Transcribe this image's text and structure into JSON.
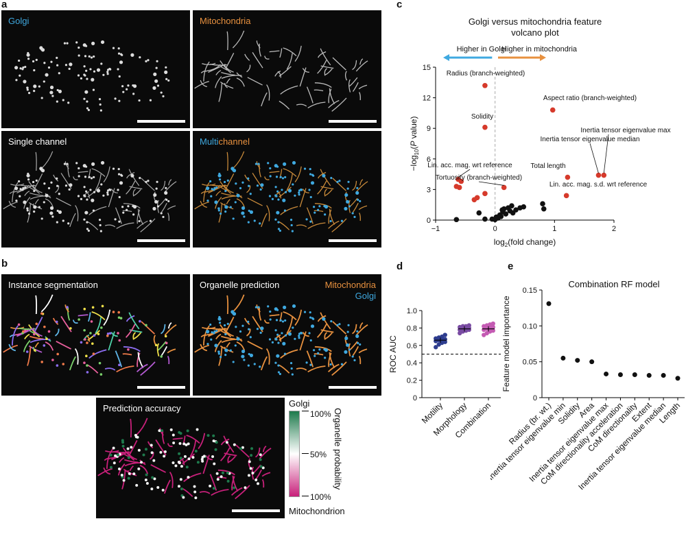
{
  "panels": {
    "a": {
      "label": "a",
      "tiles": [
        {
          "label": "Golgi",
          "color": "#3fa9e0"
        },
        {
          "label": "Mitochondria",
          "color": "#e8913f"
        },
        {
          "label": "Single channel",
          "color": "#ffffff"
        },
        {
          "label_part1": "Multi",
          "label_part2": "channel",
          "color1": "#3fa9e0",
          "color2": "#e8913f"
        }
      ]
    },
    "b": {
      "label": "b",
      "seg_label": "Instance segmentation",
      "pred_label": "Organelle prediction",
      "pred_legend_mito": "Mitochondria",
      "pred_legend_golgi": "Golgi",
      "acc_label": "Prediction accuracy",
      "colorbar": {
        "top": "Golgi",
        "bottom": "Mitochondrion",
        "ticks": [
          "100%",
          "50%",
          "100%"
        ],
        "title": "Organelle probability"
      }
    },
    "c": {
      "label": "c"
    },
    "d": {
      "label": "d"
    },
    "e": {
      "label": "e"
    }
  },
  "colors": {
    "golgi": "#3fa9e0",
    "mito": "#e8913f",
    "red": "#d63a2b",
    "green": "#1e7a4c",
    "pink": "#c8207a"
  },
  "chart_data": [
    {
      "id": "volcano",
      "type": "scatter",
      "title": "Golgi versus mitochondria feature volcano plot",
      "xlabel": "log2(fold change)",
      "ylabel": "−log10(P value)",
      "xlim": [
        -1,
        2
      ],
      "ylim": [
        0,
        15
      ],
      "xticks": [
        -1,
        0,
        1,
        2
      ],
      "yticks": [
        0,
        3,
        6,
        9,
        12,
        15
      ],
      "arrow_left": "Higher in Golgi",
      "arrow_right": "Higher in mitochondria",
      "significant": [
        {
          "x": -0.17,
          "y": 13.2,
          "label": "Radius (branch-weighted)"
        },
        {
          "x": 0.97,
          "y": 10.8,
          "label": "Aspect ratio (branch-weighted)"
        },
        {
          "x": -0.17,
          "y": 9.1,
          "label": "Solidity"
        },
        {
          "x": 1.74,
          "y": 4.4,
          "label": "Inertia tensor eigenvalue median"
        },
        {
          "x": 1.83,
          "y": 4.4,
          "label": "Inertia tensor eigenvalue max"
        },
        {
          "x": 1.22,
          "y": 4.2,
          "label": "Total length"
        },
        {
          "x": -0.62,
          "y": 4.0,
          "label": "Lin. acc. mag. wrt reference"
        },
        {
          "x": -0.57,
          "y": 3.8,
          "label": ""
        },
        {
          "x": -0.65,
          "y": 3.3,
          "label": ""
        },
        {
          "x": -0.6,
          "y": 3.2,
          "label": ""
        },
        {
          "x": 0.15,
          "y": 3.2,
          "label": "Tortuosity (branch-weighted)"
        },
        {
          "x": -0.17,
          "y": 2.6,
          "label": ""
        },
        {
          "x": -0.3,
          "y": 2.2,
          "label": ""
        },
        {
          "x": -0.35,
          "y": 2.0,
          "label": ""
        },
        {
          "x": 1.2,
          "y": 2.4,
          "label": "Lin. acc. mag. s.d. wrt reference"
        }
      ],
      "nonsignificant": [
        {
          "x": -0.65,
          "y": 0.05
        },
        {
          "x": -0.27,
          "y": 0.7
        },
        {
          "x": -0.17,
          "y": 0.1
        },
        {
          "x": -0.05,
          "y": 0.1
        },
        {
          "x": 0.0,
          "y": 0.05
        },
        {
          "x": 0.02,
          "y": 0.3
        },
        {
          "x": 0.05,
          "y": 0.2
        },
        {
          "x": 0.08,
          "y": 0.5
        },
        {
          "x": 0.1,
          "y": 0.35
        },
        {
          "x": 0.13,
          "y": 0.8
        },
        {
          "x": 0.15,
          "y": 1.1
        },
        {
          "x": 0.18,
          "y": 0.6
        },
        {
          "x": 0.22,
          "y": 1.2
        },
        {
          "x": 0.25,
          "y": 0.9
        },
        {
          "x": 0.28,
          "y": 1.4
        },
        {
          "x": 0.35,
          "y": 1.0
        },
        {
          "x": 0.42,
          "y": 1.2
        },
        {
          "x": 0.48,
          "y": 1.3
        },
        {
          "x": 0.8,
          "y": 1.6
        },
        {
          "x": 0.82,
          "y": 1.1
        },
        {
          "x": 0.12,
          "y": 1.0
        },
        {
          "x": 0.3,
          "y": 0.7
        }
      ]
    },
    {
      "id": "roc",
      "type": "scatter",
      "ylabel": "ROC AUC",
      "ylim": [
        0,
        1.0
      ],
      "yticks": [
        "0",
        "0.2",
        "0.4",
        "0.6",
        "0.8",
        "1.0"
      ],
      "chance": 0.5,
      "categories": [
        "Motility",
        "Morphology",
        "Combination"
      ],
      "colors": [
        "#2e3d8f",
        "#7a4ca3",
        "#c45bb3"
      ],
      "means": [
        0.66,
        0.79,
        0.79
      ],
      "points": [
        [
          0.58,
          0.61,
          0.63,
          0.64,
          0.65,
          0.66,
          0.66,
          0.67,
          0.68,
          0.69,
          0.7,
          0.72
        ],
        [
          0.74,
          0.76,
          0.77,
          0.78,
          0.78,
          0.79,
          0.8,
          0.8,
          0.81,
          0.82,
          0.82,
          0.83
        ],
        [
          0.72,
          0.74,
          0.76,
          0.77,
          0.78,
          0.79,
          0.8,
          0.81,
          0.82,
          0.83,
          0.84,
          0.85
        ]
      ]
    },
    {
      "id": "importance",
      "type": "scatter",
      "title": "Combination RF model",
      "ylabel": "Feature model importance",
      "ylim": [
        0,
        0.15
      ],
      "yticks": [
        "0",
        "0.05",
        "0.10",
        "0.15"
      ],
      "categories": [
        "Radius (br. wt.)",
        "Inertia tensor eigenvalue min",
        "Solidity",
        "Area",
        "Inertia tensor eigenvalue max",
        "CoM directionality acceleration",
        "CoM directionality",
        "Extent",
        "Inertia tensor eigenvalue median",
        "Length"
      ],
      "values": [
        0.131,
        0.055,
        0.052,
        0.05,
        0.033,
        0.032,
        0.032,
        0.031,
        0.031,
        0.027
      ]
    }
  ]
}
